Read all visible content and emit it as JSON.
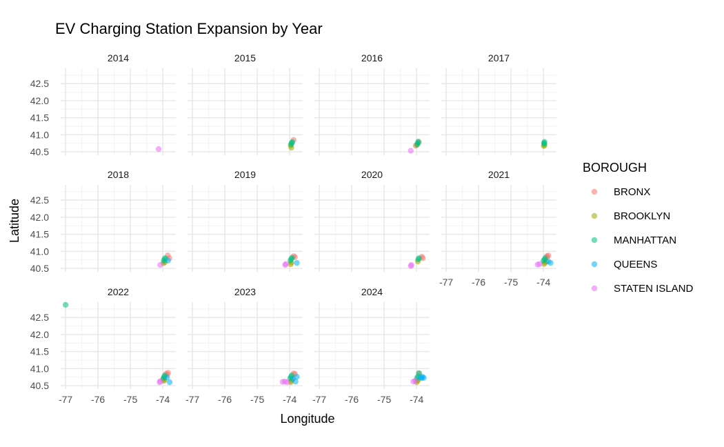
{
  "chart_data": {
    "type": "scatter",
    "title": "EV Charging Station Expansion by Year",
    "xlabel": "Longitude",
    "ylabel": "Latitude",
    "xlim": [
      -77.15,
      -73.6
    ],
    "ylim": [
      40.4,
      42.95
    ],
    "x_ticks": [
      -77,
      -76,
      -75,
      -74
    ],
    "x_tick_labels": [
      "-77",
      "-76",
      "-75",
      "-74"
    ],
    "y_ticks": [
      40.5,
      41.0,
      41.5,
      42.0,
      42.5
    ],
    "y_tick_labels": [
      "40.5",
      "41.0",
      "41.5",
      "42.0",
      "42.5"
    ],
    "grid": true,
    "legend": {
      "title": "BOROUGH",
      "position": "right",
      "entries": [
        {
          "name": "BRONX",
          "color": "#F8766D"
        },
        {
          "name": "BROOKLYN",
          "color": "#A3A500"
        },
        {
          "name": "MANHATTAN",
          "color": "#00BF7D"
        },
        {
          "name": "QUEENS",
          "color": "#00B0F6"
        },
        {
          "name": "STATEN ISLAND",
          "color": "#E76BF3"
        }
      ]
    },
    "panels": [
      {
        "year": "2014",
        "points": [
          {
            "b": "STATEN ISLAND",
            "x": -74.13,
            "y": 40.58
          }
        ]
      },
      {
        "year": "2015",
        "points": [
          {
            "b": "BRONX",
            "x": -73.88,
            "y": 40.85
          },
          {
            "b": "BROOKLYN",
            "x": -73.95,
            "y": 40.62
          },
          {
            "b": "BROOKLYN",
            "x": -73.97,
            "y": 40.68
          },
          {
            "b": "MANHATTAN",
            "x": -73.96,
            "y": 40.72
          },
          {
            "b": "MANHATTAN",
            "x": -73.94,
            "y": 40.76
          },
          {
            "b": "MANHATTAN",
            "x": -73.92,
            "y": 40.79
          }
        ]
      },
      {
        "year": "2016",
        "points": [
          {
            "b": "BRONX",
            "x": -73.93,
            "y": 40.78
          },
          {
            "b": "BRONX",
            "x": -74.03,
            "y": 40.68
          },
          {
            "b": "BROOKLYN",
            "x": -73.99,
            "y": 40.7
          },
          {
            "b": "MANHATTAN",
            "x": -73.98,
            "y": 40.72
          },
          {
            "b": "MANHATTAN",
            "x": -73.96,
            "y": 40.76
          },
          {
            "b": "MANHATTAN",
            "x": -73.95,
            "y": 40.8
          },
          {
            "b": "STATEN ISLAND",
            "x": -74.18,
            "y": 40.53
          }
        ]
      },
      {
        "year": "2017",
        "points": [
          {
            "b": "BROOKLYN",
            "x": -73.99,
            "y": 40.67
          },
          {
            "b": "BROOKLYN",
            "x": -73.97,
            "y": 40.69
          },
          {
            "b": "MANHATTAN",
            "x": -73.98,
            "y": 40.73
          },
          {
            "b": "MANHATTAN",
            "x": -73.98,
            "y": 40.76
          },
          {
            "b": "MANHATTAN",
            "x": -73.97,
            "y": 40.79
          }
        ]
      },
      {
        "year": "2018",
        "points": [
          {
            "b": "BRONX",
            "x": -73.85,
            "y": 40.88
          },
          {
            "b": "BRONX",
            "x": -73.8,
            "y": 40.8
          },
          {
            "b": "BROOKLYN",
            "x": -73.98,
            "y": 40.65
          },
          {
            "b": "BROOKLYN",
            "x": -73.94,
            "y": 40.68
          },
          {
            "b": "MANHATTAN",
            "x": -73.97,
            "y": 40.72
          },
          {
            "b": "MANHATTAN",
            "x": -73.95,
            "y": 40.77
          },
          {
            "b": "MANHATTAN",
            "x": -73.93,
            "y": 40.8
          },
          {
            "b": "QUEENS",
            "x": -73.84,
            "y": 40.73
          },
          {
            "b": "STATEN ISLAND",
            "x": -74.08,
            "y": 40.6
          }
        ]
      },
      {
        "year": "2019",
        "points": [
          {
            "b": "BRONX",
            "x": -73.88,
            "y": 40.86
          },
          {
            "b": "BRONX",
            "x": -73.84,
            "y": 40.83
          },
          {
            "b": "BROOKLYN",
            "x": -73.97,
            "y": 40.62
          },
          {
            "b": "BROOKLYN",
            "x": -73.95,
            "y": 40.67
          },
          {
            "b": "MANHATTAN",
            "x": -73.98,
            "y": 40.73
          },
          {
            "b": "MANHATTAN",
            "x": -73.95,
            "y": 40.78
          },
          {
            "b": "MANHATTAN",
            "x": -73.93,
            "y": 40.81
          },
          {
            "b": "QUEENS",
            "x": -73.78,
            "y": 40.66
          },
          {
            "b": "STATEN ISLAND",
            "x": -74.14,
            "y": 40.6
          },
          {
            "b": "STATEN ISLAND",
            "x": -74.12,
            "y": 40.63
          }
        ]
      },
      {
        "year": "2020",
        "points": [
          {
            "b": "BRONX",
            "x": -73.84,
            "y": 40.84
          },
          {
            "b": "BRONX",
            "x": -73.81,
            "y": 40.8
          },
          {
            "b": "BROOKLYN",
            "x": -73.96,
            "y": 40.7
          },
          {
            "b": "MANHATTAN",
            "x": -73.95,
            "y": 40.76
          },
          {
            "b": "MANHATTAN",
            "x": -73.93,
            "y": 40.8
          },
          {
            "b": "STATEN ISLAND",
            "x": -74.18,
            "y": 40.57
          },
          {
            "b": "STATEN ISLAND",
            "x": -74.16,
            "y": 40.6
          }
        ]
      },
      {
        "year": "2021",
        "points": [
          {
            "b": "BRONX",
            "x": -73.9,
            "y": 40.86
          },
          {
            "b": "BRONX",
            "x": -73.85,
            "y": 40.88
          },
          {
            "b": "BRONX",
            "x": -73.88,
            "y": 40.83
          },
          {
            "b": "BROOKLYN",
            "x": -73.98,
            "y": 40.63
          },
          {
            "b": "BROOKLYN",
            "x": -73.95,
            "y": 40.67
          },
          {
            "b": "BROOKLYN",
            "x": -73.92,
            "y": 40.7
          },
          {
            "b": "MANHATTAN",
            "x": -74.0,
            "y": 40.72
          },
          {
            "b": "MANHATTAN",
            "x": -73.97,
            "y": 40.76
          },
          {
            "b": "MANHATTAN",
            "x": -73.95,
            "y": 40.8
          },
          {
            "b": "QUEENS",
            "x": -73.85,
            "y": 40.7
          },
          {
            "b": "QUEENS",
            "x": -73.78,
            "y": 40.66
          },
          {
            "b": "STATEN ISLAND",
            "x": -74.18,
            "y": 40.61
          },
          {
            "b": "STATEN ISLAND",
            "x": -74.12,
            "y": 40.63
          }
        ]
      },
      {
        "year": "2022",
        "points": [
          {
            "b": "MANHATTAN",
            "x": -77.0,
            "y": 42.87
          },
          {
            "b": "BRONX",
            "x": -73.9,
            "y": 40.85
          },
          {
            "b": "BRONX",
            "x": -73.84,
            "y": 40.88
          },
          {
            "b": "BRONX",
            "x": -73.86,
            "y": 40.82
          },
          {
            "b": "BROOKLYN",
            "x": -73.97,
            "y": 40.64
          },
          {
            "b": "BROOKLYN",
            "x": -73.95,
            "y": 40.67
          },
          {
            "b": "BROOKLYN",
            "x": -73.99,
            "y": 40.69
          },
          {
            "b": "MANHATTAN",
            "x": -73.98,
            "y": 40.72
          },
          {
            "b": "MANHATTAN",
            "x": -73.96,
            "y": 40.76
          },
          {
            "b": "MANHATTAN",
            "x": -73.94,
            "y": 40.8
          },
          {
            "b": "QUEENS",
            "x": -73.87,
            "y": 40.74
          },
          {
            "b": "QUEENS",
            "x": -73.79,
            "y": 40.6
          },
          {
            "b": "STATEN ISLAND",
            "x": -74.1,
            "y": 40.6
          },
          {
            "b": "STATEN ISLAND",
            "x": -74.08,
            "y": 40.63
          }
        ]
      },
      {
        "year": "2023",
        "points": [
          {
            "b": "BRONX",
            "x": -73.88,
            "y": 40.86
          },
          {
            "b": "BRONX",
            "x": -73.84,
            "y": 40.84
          },
          {
            "b": "BROOKLYN",
            "x": -73.97,
            "y": 40.6
          },
          {
            "b": "BROOKLYN",
            "x": -73.95,
            "y": 40.64
          },
          {
            "b": "BROOKLYN",
            "x": -73.93,
            "y": 40.68
          },
          {
            "b": "MANHATTAN",
            "x": -73.99,
            "y": 40.71
          },
          {
            "b": "MANHATTAN",
            "x": -73.96,
            "y": 40.76
          },
          {
            "b": "MANHATTAN",
            "x": -73.94,
            "y": 40.8
          },
          {
            "b": "QUEENS",
            "x": -73.9,
            "y": 40.7
          },
          {
            "b": "QUEENS",
            "x": -73.78,
            "y": 40.76
          },
          {
            "b": "QUEENS",
            "x": -73.82,
            "y": 40.62
          },
          {
            "b": "STATEN ISLAND",
            "x": -74.22,
            "y": 40.61
          },
          {
            "b": "STATEN ISLAND",
            "x": -74.15,
            "y": 40.62
          },
          {
            "b": "STATEN ISLAND",
            "x": -74.08,
            "y": 40.6
          }
        ]
      },
      {
        "year": "2024",
        "points": [
          {
            "b": "BRONX",
            "x": -73.92,
            "y": 40.85
          },
          {
            "b": "BROOKLYN",
            "x": -74.0,
            "y": 40.6
          },
          {
            "b": "BROOKLYN",
            "x": -73.97,
            "y": 40.64
          },
          {
            "b": "BROOKLYN",
            "x": -73.95,
            "y": 40.67
          },
          {
            "b": "MANHATTAN",
            "x": -73.99,
            "y": 40.72
          },
          {
            "b": "MANHATTAN",
            "x": -73.96,
            "y": 40.77
          },
          {
            "b": "MANHATTAN",
            "x": -73.93,
            "y": 40.87
          },
          {
            "b": "QUEENS",
            "x": -73.88,
            "y": 40.74
          },
          {
            "b": "QUEENS",
            "x": -73.84,
            "y": 40.72
          },
          {
            "b": "QUEENS",
            "x": -73.78,
            "y": 40.73
          },
          {
            "b": "QUEENS",
            "x": -73.82,
            "y": 40.76
          },
          {
            "b": "STATEN ISLAND",
            "x": -74.1,
            "y": 40.62
          },
          {
            "b": "STATEN ISLAND",
            "x": -74.04,
            "y": 40.64
          }
        ]
      }
    ]
  }
}
